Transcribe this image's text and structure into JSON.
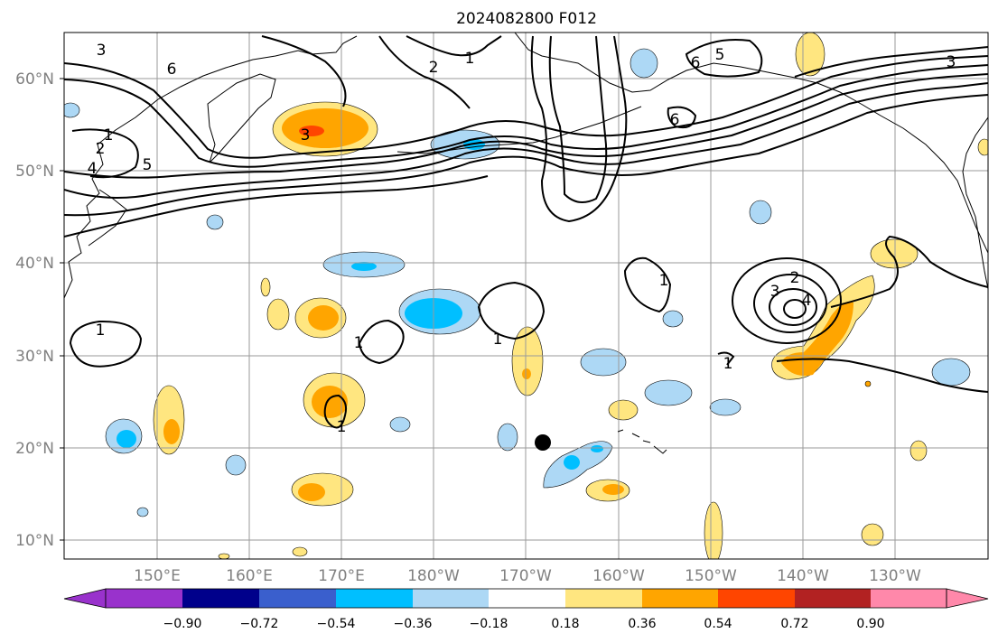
{
  "title": "2024082800 F012",
  "map": {
    "lat_ticks": [
      "60°N",
      "50°N",
      "40°N",
      "30°N",
      "20°N",
      "10°N"
    ],
    "lon_ticks": [
      "150°E",
      "160°E",
      "170°E",
      "180°W",
      "170°W",
      "160°W",
      "150°W",
      "140°W",
      "130°W"
    ],
    "grid": true,
    "contour_labels": [
      "3",
      "6",
      "2",
      "1",
      "4",
      "5",
      "3",
      "1",
      "1",
      "2",
      "3",
      "4",
      "1",
      "1",
      "1",
      "1",
      "6",
      "5",
      "3",
      "6",
      "2",
      "1"
    ],
    "colors": {
      "neg_strong": "#00bfff",
      "neg_weak": "#add8f5",
      "pos_weak": "#ffe680",
      "pos_mid": "#ffa500",
      "pos_strong": "#ff4500"
    }
  },
  "colorbar": {
    "labels": [
      "−0.90",
      "−0.72",
      "−0.54",
      "−0.36",
      "−0.18",
      "0.18",
      "0.36",
      "0.54",
      "0.72",
      "0.90"
    ],
    "colors": [
      "#9932cc",
      "#00008b",
      "#3a5fcd",
      "#00bfff",
      "#add8f5",
      "#ffffff",
      "#ffe680",
      "#ffa500",
      "#ff4500",
      "#b22222",
      "#ff88aa"
    ]
  }
}
